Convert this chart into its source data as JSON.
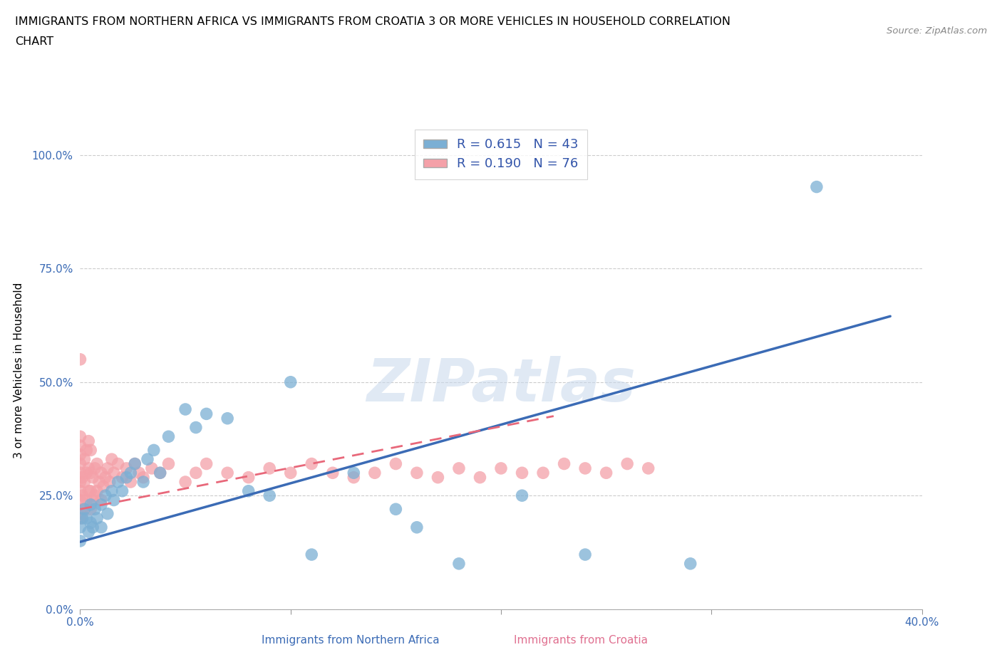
{
  "title_line1": "IMMIGRANTS FROM NORTHERN AFRICA VS IMMIGRANTS FROM CROATIA 3 OR MORE VEHICLES IN HOUSEHOLD CORRELATION",
  "title_line2": "CHART",
  "source": "Source: ZipAtlas.com",
  "ylabel": "3 or more Vehicles in Household",
  "xlabel_blue": "Immigrants from Northern Africa",
  "xlabel_pink": "Immigrants from Croatia",
  "xlim": [
    0.0,
    0.4
  ],
  "ylim": [
    0.0,
    1.05
  ],
  "r_blue": 0.615,
  "n_blue": 43,
  "r_pink": 0.19,
  "n_pink": 76,
  "color_blue": "#7BAFD4",
  "color_pink": "#F4A0A8",
  "color_blue_line": "#3B6BB5",
  "color_pink_line": "#E8687A",
  "legend_color_blue": "#4472C4",
  "legend_color_pink": "#E07090",
  "watermark": "ZIPatlas",
  "blue_x": [
    0.0,
    0.0,
    0.001,
    0.002,
    0.003,
    0.004,
    0.005,
    0.005,
    0.006,
    0.007,
    0.008,
    0.01,
    0.01,
    0.012,
    0.013,
    0.015,
    0.016,
    0.018,
    0.02,
    0.022,
    0.024,
    0.026,
    0.03,
    0.032,
    0.035,
    0.038,
    0.042,
    0.05,
    0.055,
    0.06,
    0.07,
    0.08,
    0.09,
    0.1,
    0.11,
    0.13,
    0.15,
    0.16,
    0.18,
    0.21,
    0.24,
    0.29,
    0.35
  ],
  "blue_y": [
    0.15,
    0.18,
    0.2,
    0.22,
    0.2,
    0.17,
    0.19,
    0.23,
    0.18,
    0.22,
    0.2,
    0.23,
    0.18,
    0.25,
    0.21,
    0.26,
    0.24,
    0.28,
    0.26,
    0.29,
    0.3,
    0.32,
    0.28,
    0.33,
    0.35,
    0.3,
    0.38,
    0.44,
    0.4,
    0.43,
    0.42,
    0.26,
    0.25,
    0.5,
    0.12,
    0.3,
    0.22,
    0.18,
    0.1,
    0.25,
    0.12,
    0.1,
    0.93
  ],
  "pink_x": [
    0.0,
    0.0,
    0.0,
    0.0,
    0.0,
    0.0,
    0.0,
    0.0,
    0.0,
    0.0,
    0.0,
    0.001,
    0.001,
    0.001,
    0.002,
    0.002,
    0.002,
    0.003,
    0.003,
    0.003,
    0.004,
    0.004,
    0.004,
    0.005,
    0.005,
    0.005,
    0.005,
    0.006,
    0.006,
    0.007,
    0.007,
    0.008,
    0.008,
    0.009,
    0.01,
    0.01,
    0.011,
    0.012,
    0.013,
    0.014,
    0.015,
    0.016,
    0.018,
    0.02,
    0.022,
    0.024,
    0.026,
    0.028,
    0.03,
    0.034,
    0.038,
    0.042,
    0.05,
    0.055,
    0.06,
    0.07,
    0.08,
    0.09,
    0.1,
    0.11,
    0.12,
    0.13,
    0.14,
    0.15,
    0.16,
    0.17,
    0.18,
    0.19,
    0.2,
    0.21,
    0.22,
    0.23,
    0.24,
    0.25,
    0.26,
    0.27
  ],
  "pink_y": [
    0.2,
    0.22,
    0.24,
    0.26,
    0.28,
    0.3,
    0.32,
    0.34,
    0.36,
    0.38,
    0.55,
    0.21,
    0.25,
    0.29,
    0.22,
    0.28,
    0.33,
    0.24,
    0.3,
    0.35,
    0.26,
    0.31,
    0.37,
    0.22,
    0.26,
    0.3,
    0.35,
    0.24,
    0.29,
    0.25,
    0.31,
    0.26,
    0.32,
    0.28,
    0.24,
    0.3,
    0.27,
    0.29,
    0.31,
    0.28,
    0.33,
    0.3,
    0.32,
    0.29,
    0.31,
    0.28,
    0.32,
    0.3,
    0.29,
    0.31,
    0.3,
    0.32,
    0.28,
    0.3,
    0.32,
    0.3,
    0.29,
    0.31,
    0.3,
    0.32,
    0.3,
    0.29,
    0.3,
    0.32,
    0.3,
    0.29,
    0.31,
    0.29,
    0.31,
    0.3,
    0.3,
    0.32,
    0.31,
    0.3,
    0.32,
    0.31
  ],
  "blue_line_x": [
    0.0,
    0.385
  ],
  "blue_line_y": [
    0.148,
    0.645
  ],
  "pink_line_x": [
    0.0,
    0.225
  ],
  "pink_line_y": [
    0.22,
    0.425
  ]
}
